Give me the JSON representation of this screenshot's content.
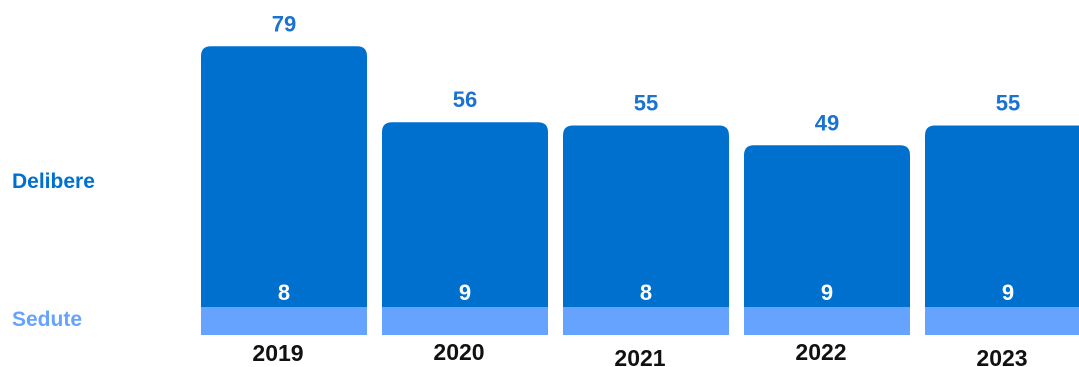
{
  "chart_data": {
    "type": "bar",
    "stacked": true,
    "categories": [
      "2019",
      "2020",
      "2021",
      "2022",
      "2023"
    ],
    "series": [
      {
        "name": "Sedute",
        "values": [
          8,
          9,
          8,
          9,
          9
        ],
        "color": "#66a3ff"
      },
      {
        "name": "Delibere",
        "values": [
          79,
          56,
          55,
          49,
          55
        ],
        "color": "#0070cf"
      }
    ],
    "total_label_color": "#1a73d1",
    "inner_label_color": "#ffffff",
    "category_label_color": "#111111",
    "grid": false,
    "legend_position": "left"
  }
}
